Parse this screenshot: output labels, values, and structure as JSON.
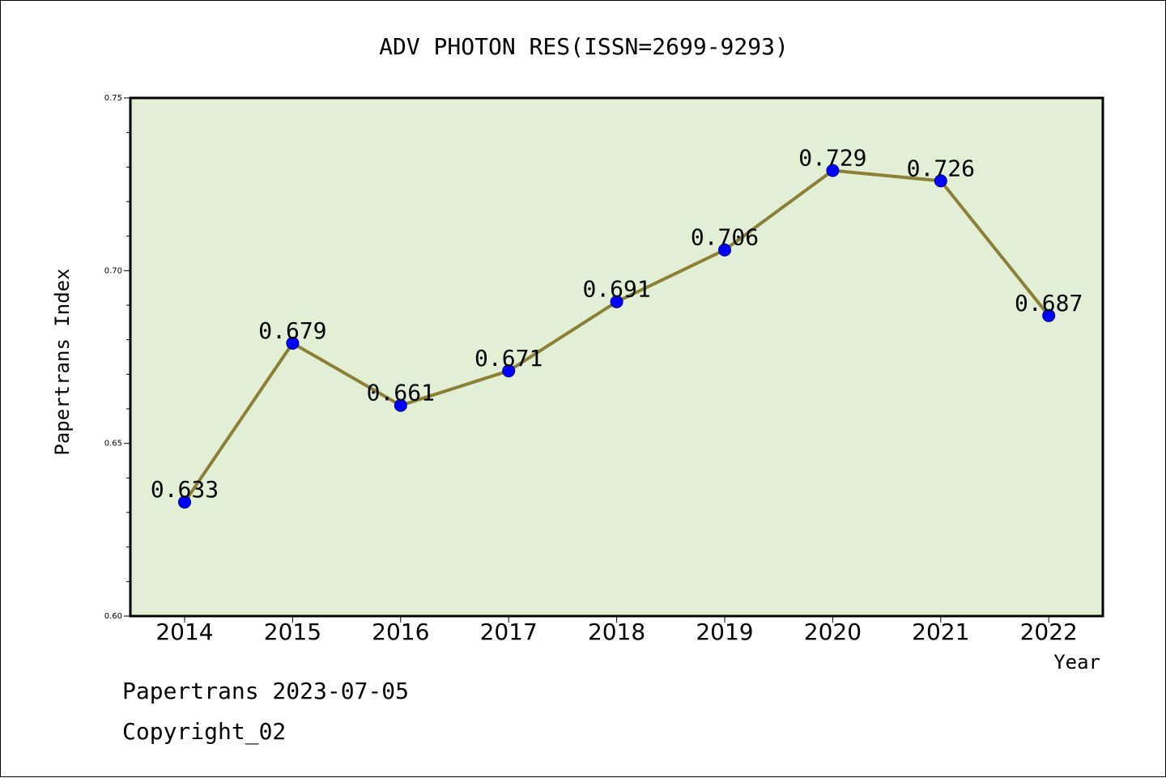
{
  "chart_data": {
    "type": "line",
    "title": "ADV PHOTON RES(ISSN=2699-9293)",
    "xlabel": "Year",
    "ylabel": "Papertrans Index",
    "categories": [
      "2014",
      "2015",
      "2016",
      "2017",
      "2018",
      "2019",
      "2020",
      "2021",
      "2022"
    ],
    "series": [
      {
        "values": [
          0.633,
          0.679,
          0.661,
          0.671,
          0.691,
          0.706,
          0.729,
          0.726,
          0.687
        ],
        "data_labels": [
          "0.633",
          "0.679",
          "0.661",
          "0.671",
          "0.691",
          "0.706",
          "0.729",
          "0.726",
          "0.687"
        ],
        "line_color": "#8b8038",
        "marker_color": "#0000ff"
      }
    ],
    "ylim": [
      0.6,
      0.75
    ],
    "yticks": [
      {
        "value": 0.6,
        "label": "0.60"
      },
      {
        "value": 0.65,
        "label": "0.65"
      },
      {
        "value": 0.7,
        "label": "0.70"
      },
      {
        "value": 0.75,
        "label": "0.75"
      }
    ],
    "grid": false,
    "plot_background": "#e2efd5",
    "legend": "none"
  },
  "footer": {
    "line1": "Papertrans 2023-07-05",
    "line2": "Copyright_02"
  }
}
